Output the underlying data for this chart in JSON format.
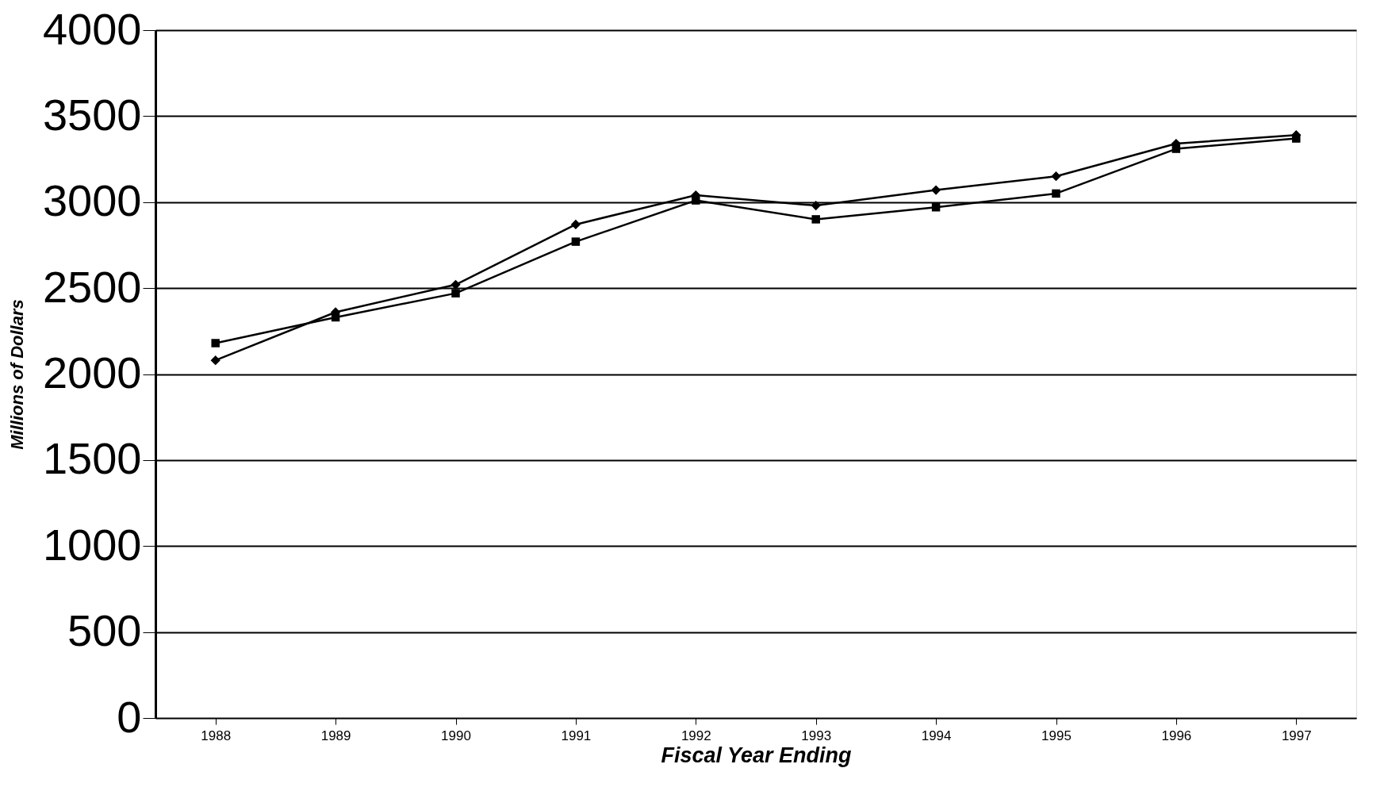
{
  "chart_data": {
    "type": "line",
    "xlabel": "Fiscal Year Ending",
    "ylabel": "Millions of Dollars",
    "categories": [
      "1988",
      "1989",
      "1990",
      "1991",
      "1992",
      "1993",
      "1994",
      "1995",
      "1996",
      "1997"
    ],
    "series": [
      {
        "color": "#000000",
        "marker": "diamond",
        "values": [
          2080,
          2360,
          2520,
          2870,
          3040,
          2980,
          3070,
          3150,
          3340,
          3390
        ]
      },
      {
        "color": "#000000",
        "marker": "square",
        "values": [
          2180,
          2330,
          2470,
          2770,
          3010,
          2900,
          2970,
          3050,
          3310,
          3370
        ]
      }
    ],
    "ylim": [
      0,
      4000
    ],
    "yticks": [
      0,
      500,
      1000,
      1500,
      2000,
      2500,
      3000,
      3500,
      4000
    ],
    "grid": "y",
    "line_style": "solid"
  }
}
